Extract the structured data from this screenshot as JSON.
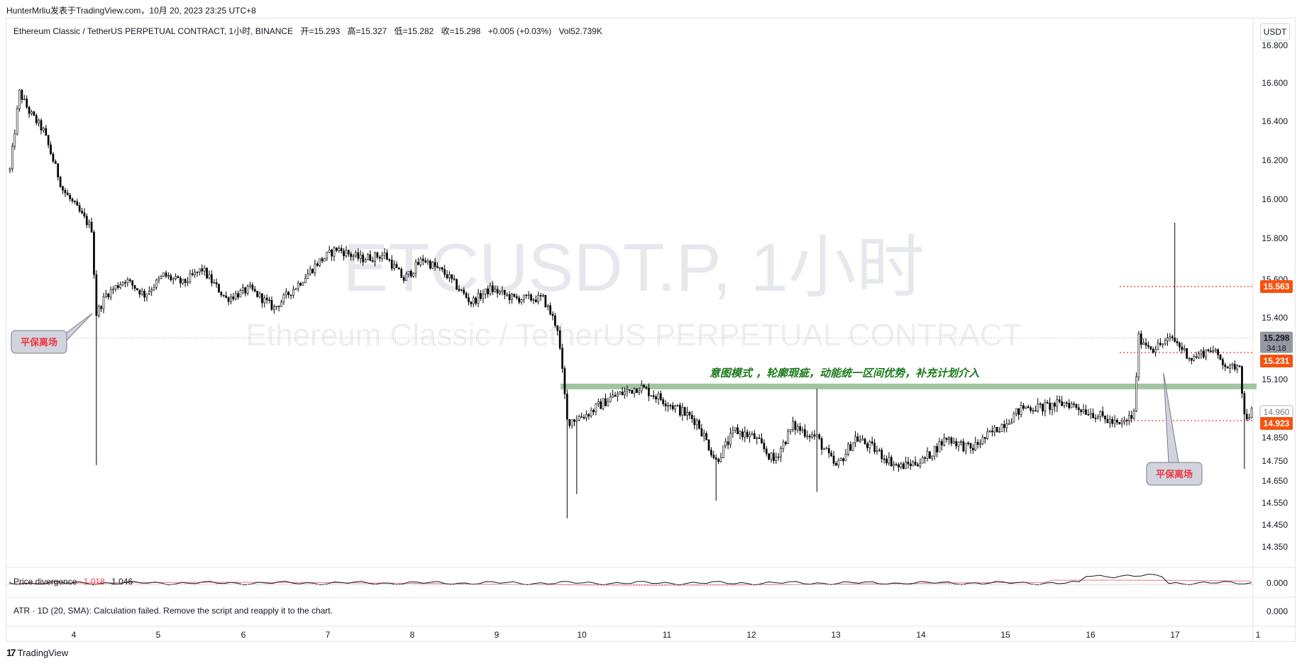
{
  "header": {
    "publish_line": "HunterMrliu发表于TradingView.com，10月 20, 2023 23:25 UTC+8"
  },
  "legend": {
    "symbol": "Ethereum Classic / TetherUS PERPETUAL CONTRACT, 1小时, BINANCE",
    "open": "开=15.293",
    "high": "高=15.327",
    "low": "低=15.282",
    "close": "收=15.298",
    "change": "+0.005 (+0.03%)",
    "volume": "Vol52.739K"
  },
  "currency_unit": "USDT",
  "watermark": {
    "line1": "ETCUSDT.P, 1小时",
    "line2": "Ethereum Classic / TetherUS PERPETUAL CONTRACT"
  },
  "annotations": {
    "callout_left": "平保离场",
    "callout_right": "平保离场",
    "zone_text": "意图模式 ，轮廓瑕疵，动能统一区间优势，补充计划介入"
  },
  "indicators": {
    "price_divergence": {
      "label": "Price divergence",
      "value1": "1.018",
      "value2": "1.046",
      "axis": "0.000"
    },
    "atr": {
      "label": "ATR · 1D (20, SMA): Calculation failed. Remove the script and reapply it to the chart.",
      "axis": "0.000"
    }
  },
  "price_tags": {
    "current": "15.298",
    "countdown": "34:18",
    "level_a": "15.563",
    "level_b": "15.231",
    "level_c": "14.960",
    "level_d": "14.923"
  },
  "colors": {
    "up": "#ffffff",
    "down": "#000000",
    "candle_outline": "#000000",
    "level_line": "#f7525f",
    "level_tag": "#f7520f",
    "zone": "#8fbc8f",
    "zone_text": "#1b7a1b",
    "callout_bg": "#d1d4dc",
    "callout_text": "#f23645"
  },
  "chart_data": {
    "type": "candlestick",
    "interval": "1小时",
    "y_axis_ticks": [
      "16.800",
      "16.600",
      "16.400",
      "16.200",
      "16.000",
      "15.800",
      "15.600",
      "15.400",
      "15.100",
      "14.850",
      "14.750",
      "14.650",
      "14.550",
      "14.450",
      "14.350"
    ],
    "x_axis_ticks": [
      "4",
      "5",
      "6",
      "7",
      "8",
      "9",
      "10",
      "11",
      "12",
      "13",
      "14",
      "15",
      "16",
      "17",
      "1"
    ],
    "horizontal_levels": [
      15.563,
      15.231,
      14.923
    ],
    "zone": {
      "price": 15.07,
      "from_day": "10",
      "to_day": "1"
    },
    "keyframes": [
      [
        0,
        16.15
      ],
      [
        1,
        16.25
      ],
      [
        4,
        16.55
      ],
      [
        8,
        16.45
      ],
      [
        14,
        16.35
      ],
      [
        22,
        16.05
      ],
      [
        28,
        15.95
      ],
      [
        34,
        15.85
      ],
      [
        36,
        15.42
      ],
      [
        40,
        15.52
      ],
      [
        48,
        15.6
      ],
      [
        56,
        15.52
      ],
      [
        64,
        15.62
      ],
      [
        72,
        15.58
      ],
      [
        80,
        15.65
      ],
      [
        90,
        15.5
      ],
      [
        100,
        15.55
      ],
      [
        110,
        15.45
      ],
      [
        118,
        15.55
      ],
      [
        128,
        15.68
      ],
      [
        136,
        15.75
      ],
      [
        146,
        15.7
      ],
      [
        156,
        15.72
      ],
      [
        164,
        15.6
      ],
      [
        172,
        15.7
      ],
      [
        182,
        15.62
      ],
      [
        192,
        15.48
      ],
      [
        200,
        15.55
      ],
      [
        210,
        15.5
      ],
      [
        222,
        15.5
      ],
      [
        228,
        15.35
      ],
      [
        232,
        14.92
      ],
      [
        240,
        14.95
      ],
      [
        250,
        15.02
      ],
      [
        262,
        15.07
      ],
      [
        274,
        15.0
      ],
      [
        286,
        14.92
      ],
      [
        294,
        14.75
      ],
      [
        302,
        14.88
      ],
      [
        310,
        14.85
      ],
      [
        318,
        14.75
      ],
      [
        326,
        14.9
      ],
      [
        336,
        14.85
      ],
      [
        344,
        14.72
      ],
      [
        352,
        14.85
      ],
      [
        360,
        14.8
      ],
      [
        370,
        14.72
      ],
      [
        380,
        14.75
      ],
      [
        390,
        14.85
      ],
      [
        400,
        14.8
      ],
      [
        410,
        14.88
      ],
      [
        422,
        14.98
      ],
      [
        430,
        14.98
      ],
      [
        440,
        15.0
      ],
      [
        452,
        14.95
      ],
      [
        462,
        14.9
      ],
      [
        468,
        14.95
      ],
      [
        470,
        15.3
      ],
      [
        476,
        15.25
      ],
      [
        484,
        15.3
      ],
      [
        492,
        15.2
      ],
      [
        500,
        15.25
      ],
      [
        508,
        15.15
      ],
      [
        512,
        15.18
      ],
      [
        514,
        14.94
      ],
      [
        517,
        14.96
      ]
    ],
    "notable_wicks": [
      {
        "index": 36,
        "low": 14.73
      },
      {
        "index": 232,
        "low": 14.48
      },
      {
        "index": 236,
        "low": 14.59
      },
      {
        "index": 294,
        "low": 14.56
      },
      {
        "index": 336,
        "high": 15.06,
        "low": 14.6
      },
      {
        "index": 485,
        "high": 15.88
      },
      {
        "index": 514,
        "low": 14.71
      }
    ]
  }
}
